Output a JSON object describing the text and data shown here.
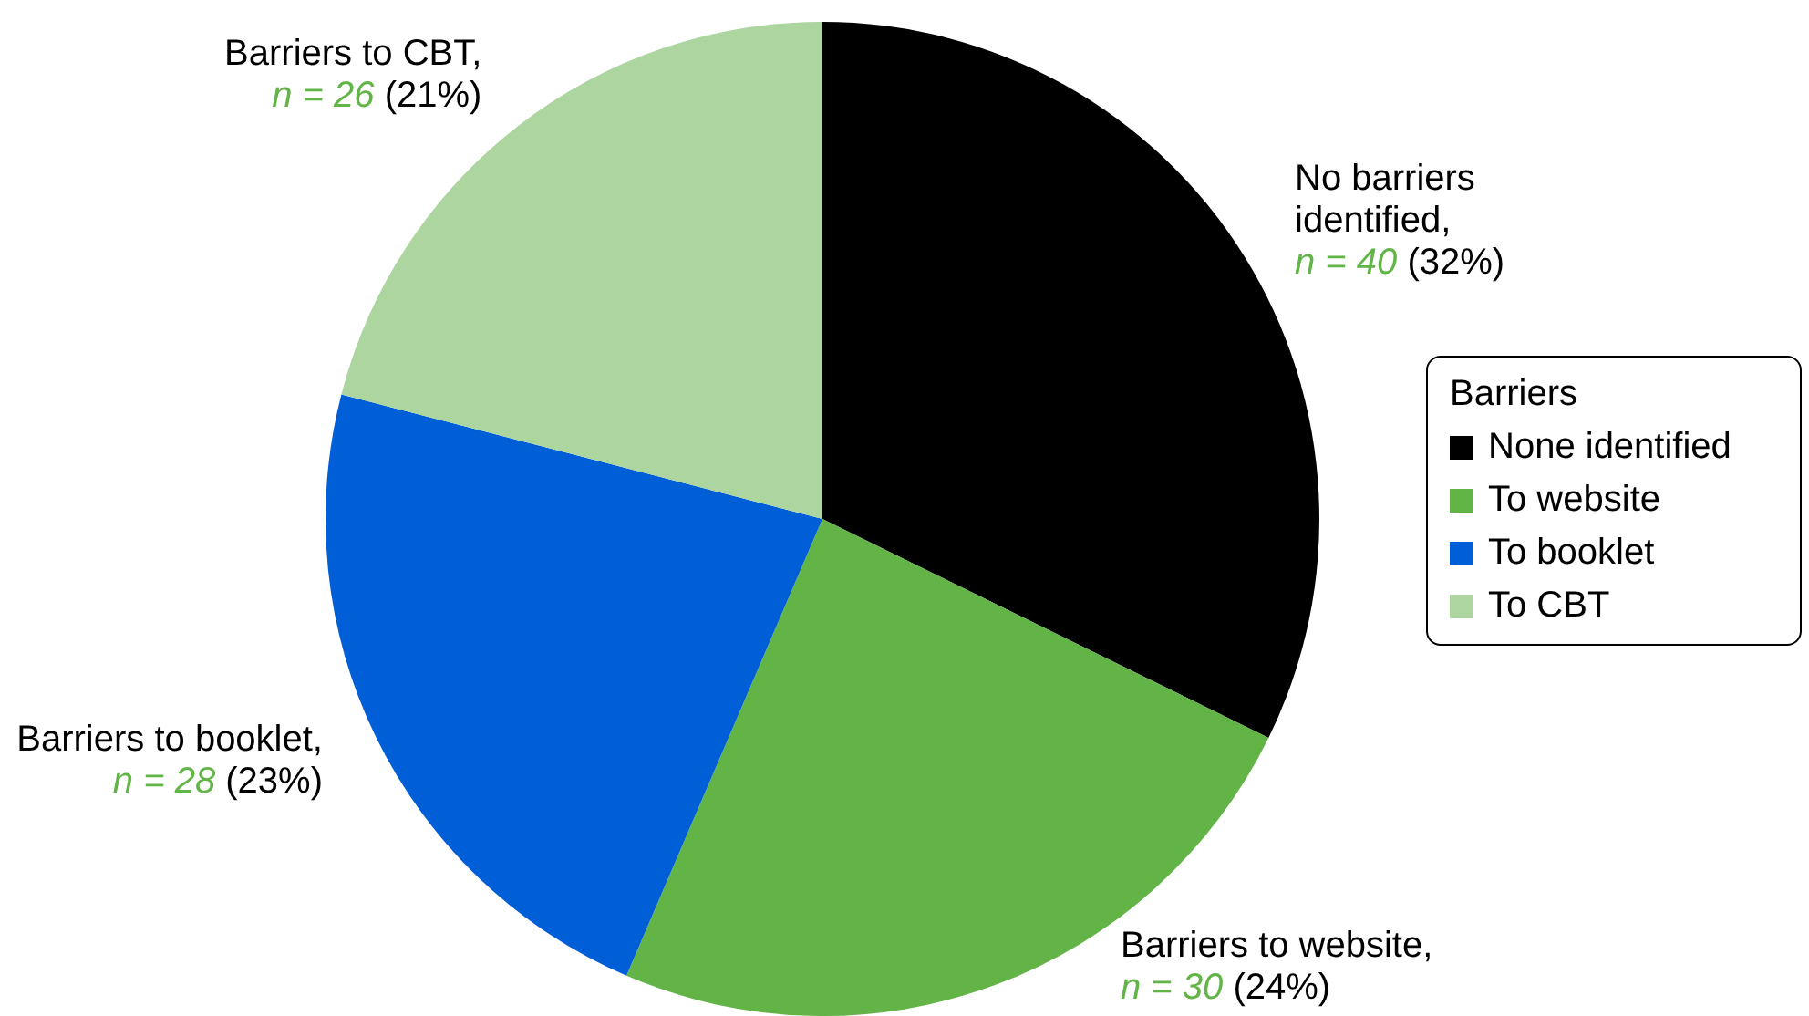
{
  "chart_data": {
    "type": "pie",
    "legend_title": "Barriers",
    "legend": "right",
    "categories": [
      "None identified",
      "To website",
      "To booklet",
      "To CBT"
    ],
    "values": [
      40,
      30,
      28,
      26
    ],
    "colors": [
      "#000000",
      "#62b446",
      "#005ed6",
      "#acd59f"
    ],
    "value_labels": [
      "No barriers\nidentified,\nn = 40 (32%)",
      "Barriers to website,\nn = 30 (24%)",
      "Barriers to booklet,\nn = 28 (23%)",
      "Barriers to CBT,\nn = 26 (21%)"
    ]
  }
}
